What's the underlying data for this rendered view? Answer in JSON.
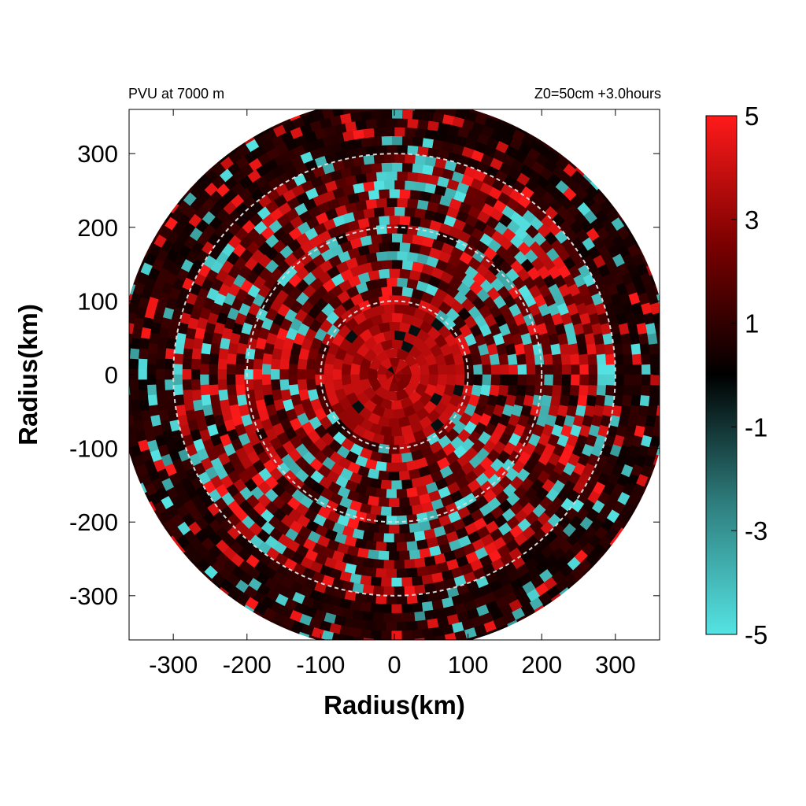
{
  "chart_data": {
    "type": "heatmap",
    "title_left": "PVU at  7000 m",
    "title_right": "Z0=50cm  +3.0hours",
    "xlabel": "Radius(km)",
    "ylabel": "Radius(km)",
    "xlim": [
      -360,
      360
    ],
    "ylim": [
      -360,
      360
    ],
    "xticks": [
      -300,
      -200,
      -100,
      0,
      100,
      200,
      300
    ],
    "yticks": [
      300,
      200,
      100,
      0,
      -100,
      -200,
      -300
    ],
    "domain_radius_km": 375,
    "reference_circles_km": [
      100,
      200,
      300
    ],
    "colorbar": {
      "min": -5,
      "max": 5,
      "ticks": [
        5,
        3,
        1,
        -1,
        -3,
        -5
      ],
      "colors": [
        "#55e3e3",
        "#2f7f7f",
        "#000000",
        "#7a0000",
        "#ff1a1a"
      ]
    },
    "field_description_values": {
      "core_radius_km": 100,
      "core_value": 4.5,
      "ring_band_km": [
        100,
        300
      ],
      "outer_value": 0.6
    }
  }
}
